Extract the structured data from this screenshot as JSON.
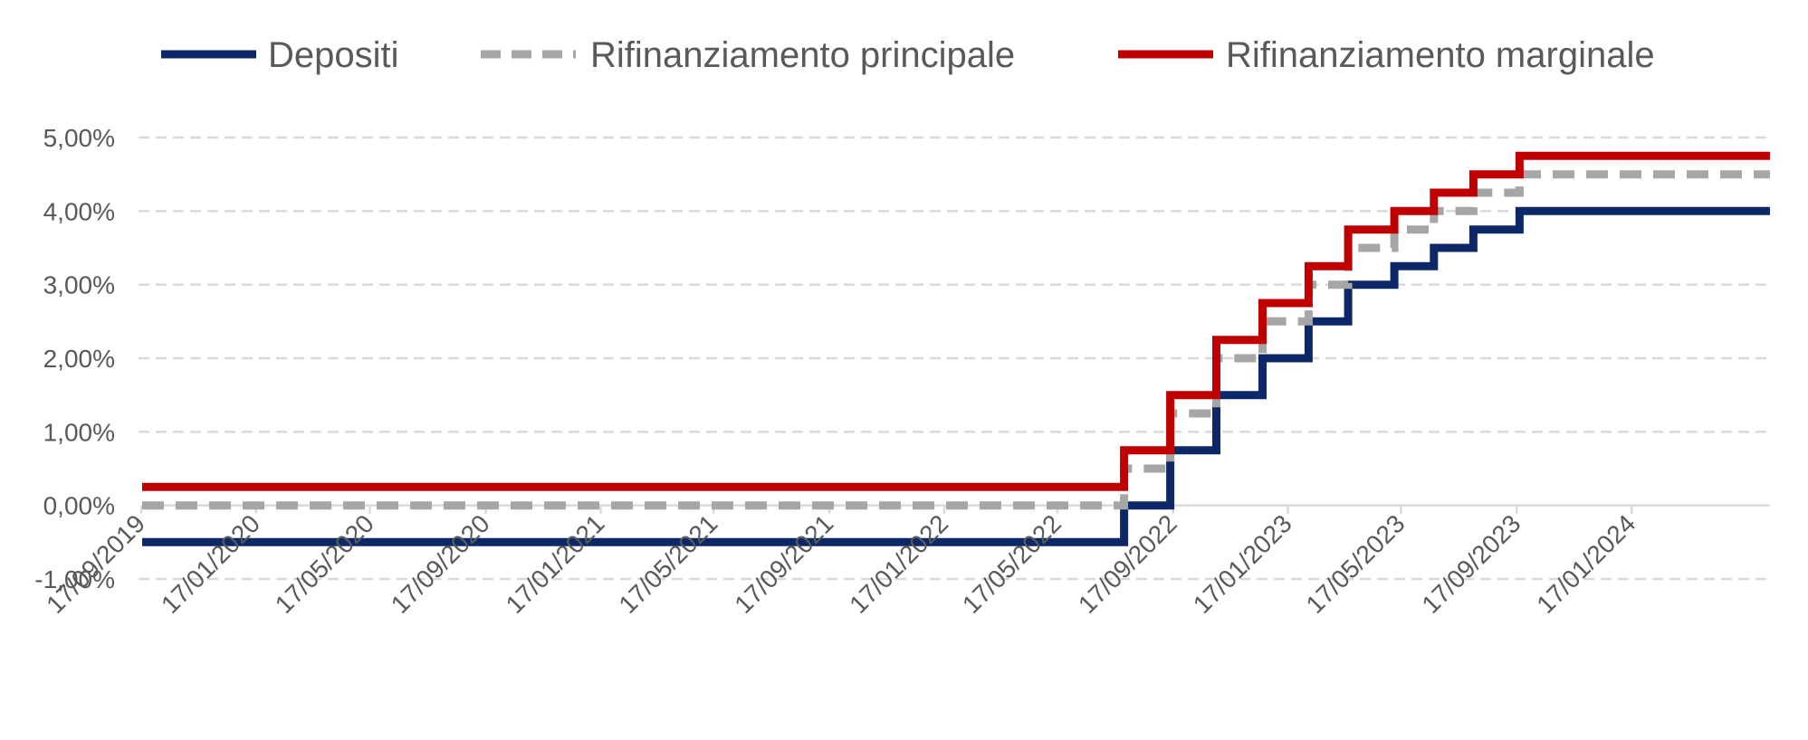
{
  "chart_data": {
    "type": "line",
    "title": "",
    "xlabel": "",
    "ylabel": "",
    "x_type": "date",
    "x_ticks": [
      "17/09/2019",
      "17/01/2020",
      "17/05/2020",
      "17/09/2020",
      "17/01/2021",
      "17/05/2021",
      "17/09/2021",
      "17/01/2022",
      "17/05/2022",
      "17/09/2022",
      "17/01/2023",
      "17/05/2023",
      "17/09/2023",
      "17/01/2024"
    ],
    "y_ticks": [
      "-1,00%",
      "0,00%",
      "1,00%",
      "2,00%",
      "3,00%",
      "4,00%",
      "5,00%"
    ],
    "ylim": [
      -1,
      5
    ],
    "xlim": [
      "2019-09-18",
      "2024-06-12"
    ],
    "grid": "horizontal dashed",
    "legend_position": "top",
    "series": [
      {
        "name": "Depositi",
        "color": "#0D2866",
        "style": "solid",
        "x": [
          "2019-09-18",
          "2022-07-27",
          "2022-09-14",
          "2022-11-02",
          "2022-12-21",
          "2023-02-08",
          "2023-03-22",
          "2023-05-10",
          "2023-06-21",
          "2023-08-02",
          "2023-09-20",
          "2024-06-12"
        ],
        "y": [
          -0.5,
          0.0,
          0.75,
          1.5,
          2.0,
          2.5,
          3.0,
          3.25,
          3.5,
          3.75,
          4.0,
          4.0
        ]
      },
      {
        "name": "Rifinanziamento principale",
        "color": "#A6A6A6",
        "style": "dashed",
        "x": [
          "2019-09-18",
          "2022-07-27",
          "2022-09-14",
          "2022-11-02",
          "2022-12-21",
          "2023-02-08",
          "2023-03-22",
          "2023-05-10",
          "2023-06-21",
          "2023-08-02",
          "2023-09-20",
          "2024-06-12"
        ],
        "y": [
          0.0,
          0.5,
          1.25,
          2.0,
          2.5,
          3.0,
          3.5,
          3.75,
          4.0,
          4.25,
          4.5,
          4.5
        ]
      },
      {
        "name": "Rifinanziamento marginale",
        "color": "#C00000",
        "style": "solid",
        "x": [
          "2019-09-18",
          "2022-07-27",
          "2022-09-14",
          "2022-11-02",
          "2022-12-21",
          "2023-02-08",
          "2023-03-22",
          "2023-05-10",
          "2023-06-21",
          "2023-08-02",
          "2023-09-20",
          "2024-06-12"
        ],
        "y": [
          0.25,
          0.75,
          1.5,
          2.25,
          2.75,
          3.25,
          3.75,
          4.0,
          4.25,
          4.5,
          4.75,
          4.75
        ]
      }
    ]
  }
}
